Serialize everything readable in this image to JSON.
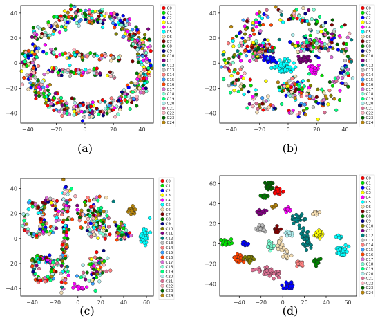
{
  "figure": {
    "legend_entries": [
      "C0",
      "C1",
      "C2",
      "C3",
      "C4",
      "C5",
      "C6",
      "C7",
      "C8",
      "C9",
      "C10",
      "C11",
      "C12",
      "C13",
      "C14",
      "C15",
      "C16",
      "C17",
      "C18",
      "C19",
      "C20",
      "C21",
      "C22",
      "C23",
      "C24"
    ],
    "legend_colors": [
      "#ff0000",
      "#00e000",
      "#0000ff",
      "#ffff00",
      "#ff00ff",
      "#00ffff",
      "#f5deb3",
      "#800000",
      "#008000",
      "#000080",
      "#808000",
      "#800080",
      "#008080",
      "#c0c0c0",
      "#ff8080",
      "#3aa0ff",
      "#ff4500",
      "#da70d6",
      "#7fffd4",
      "#00ff7f",
      "#afeeee",
      "#db7093",
      "#ffb6c1",
      "#006400",
      "#b8860b"
    ]
  },
  "chart_data": [
    {
      "type": "scatter",
      "panel_label": "(a)",
      "xlim": [
        -45,
        48
      ],
      "ylim": [
        -48,
        46
      ],
      "xticks": [
        -40,
        -20,
        0,
        20,
        40
      ],
      "yticks": [
        -40,
        -20,
        0,
        20,
        40
      ],
      "xtick_labels": [
        "−40",
        "−20",
        "0",
        "20",
        "40"
      ],
      "ytick_labels": [
        "−40",
        "−20",
        "0",
        "20",
        "40"
      ],
      "legend": "right",
      "structure": "elliptical ring with two horizontal strands",
      "clusters": [
        {
          "shape": "ring",
          "cx": 2,
          "cy": 0,
          "rx": 42,
          "ry": 40,
          "n": 420,
          "spread": 3,
          "mixed": true
        },
        {
          "shape": "ring",
          "cx": 2,
          "cy": 0,
          "rx": 37,
          "ry": 34,
          "n": 160,
          "spread": 2,
          "mixed": true
        },
        {
          "shape": "line",
          "x1": -25,
          "y1": 8,
          "x2": 25,
          "y2": 4,
          "n": 60,
          "spread": 1.5,
          "mixed": true
        },
        {
          "shape": "line",
          "x1": -28,
          "y1": -6,
          "x2": 24,
          "y2": -9,
          "n": 60,
          "spread": 1.5,
          "mixed": true
        }
      ]
    },
    {
      "type": "scatter",
      "panel_label": "(b)",
      "xlim": [
        -48,
        48
      ],
      "ylim": [
        -48,
        46
      ],
      "xticks": [
        -40,
        -20,
        0,
        20,
        40
      ],
      "yticks": [
        -40,
        -20,
        0,
        20,
        40
      ],
      "xtick_labels": [
        "−40",
        "−20",
        "0",
        "20",
        "40"
      ],
      "ytick_labels": [
        "−40",
        "−20",
        "0",
        "20",
        "40"
      ],
      "legend": "right",
      "structure": "broken ring of small clusters",
      "clusters": [
        {
          "shape": "ring",
          "cx": 0,
          "cy": 0,
          "rx": 40,
          "ry": 38,
          "n": 300,
          "spread": 5,
          "mixed": true
        },
        {
          "shape": "blob",
          "cx": -2,
          "cy": -3,
          "rx": 8,
          "ry": 5,
          "n": 70,
          "color": 5
        },
        {
          "shape": "blob",
          "cx": -12,
          "cy": 3,
          "rx": 4,
          "ry": 3,
          "n": 25,
          "color": 2
        },
        {
          "shape": "blob",
          "cx": 12,
          "cy": 3,
          "rx": 5,
          "ry": 3,
          "n": 25,
          "color": 11
        },
        {
          "shape": "blob",
          "cx": 18,
          "cy": -5,
          "rx": 4,
          "ry": 4,
          "n": 20,
          "color": 4
        },
        {
          "shape": "blob",
          "cx": -20,
          "cy": 10,
          "rx": 10,
          "ry": 8,
          "n": 80,
          "mixed": true
        },
        {
          "shape": "blob",
          "cx": 15,
          "cy": 15,
          "rx": 12,
          "ry": 8,
          "n": 80,
          "mixed": true
        },
        {
          "shape": "blob",
          "cx": 5,
          "cy": -20,
          "rx": 14,
          "ry": 8,
          "n": 80,
          "mixed": true
        }
      ]
    },
    {
      "type": "scatter",
      "panel_label": "(c)",
      "xlim": [
        -50,
        66
      ],
      "ylim": [
        -46,
        48
      ],
      "xticks": [
        -40,
        -20,
        0,
        20,
        40,
        60
      ],
      "yticks": [
        -40,
        -20,
        0,
        20,
        40
      ],
      "xtick_labels": [
        "−40",
        "−20",
        "0",
        "20",
        "40",
        "60"
      ],
      "ytick_labels": [
        "−40",
        "−20",
        "0",
        "20",
        "40"
      ],
      "legend": "right",
      "structure": "loops, strands and a separated cyan cluster",
      "clusters": [
        {
          "shape": "ring",
          "cx": -38,
          "cy": 15,
          "rx": 8,
          "ry": 13,
          "n": 60,
          "spread": 1.5,
          "mixed": true
        },
        {
          "shape": "ring",
          "cx": -25,
          "cy": 18,
          "rx": 7,
          "ry": 13,
          "n": 60,
          "spread": 1.5,
          "mixed": true
        },
        {
          "shape": "ring",
          "cx": -30,
          "cy": -25,
          "rx": 9,
          "ry": 8,
          "n": 55,
          "spread": 1.5,
          "mixed": true
        },
        {
          "shape": "line",
          "x1": -10,
          "y1": 45,
          "x2": -12,
          "y2": -40,
          "n": 90,
          "spread": 2,
          "mixed": true
        },
        {
          "shape": "line",
          "x1": -40,
          "y1": -15,
          "x2": -15,
          "y2": -20,
          "n": 40,
          "spread": 1.5,
          "mixed": true
        },
        {
          "shape": "blob",
          "cx": 15,
          "cy": 15,
          "rx": 14,
          "ry": 18,
          "n": 120,
          "mixed": true
        },
        {
          "shape": "blob",
          "cx": 15,
          "cy": -25,
          "rx": 12,
          "ry": 10,
          "n": 60,
          "mixed": true
        },
        {
          "shape": "blob",
          "cx": 38,
          "cy": 5,
          "rx": 6,
          "ry": 8,
          "n": 40,
          "mixed": true
        },
        {
          "shape": "blob",
          "cx": 47,
          "cy": 23,
          "rx": 4,
          "ry": 3,
          "n": 25,
          "color": 24
        },
        {
          "shape": "blob",
          "cx": 58,
          "cy": 2,
          "rx": 4,
          "ry": 7,
          "n": 45,
          "color": 5
        },
        {
          "shape": "line",
          "x1": -5,
          "y1": -38,
          "x2": 8,
          "y2": -40,
          "n": 15,
          "spread": 1,
          "color": 4
        }
      ]
    },
    {
      "type": "scatter",
      "panel_label": "(d)",
      "xlim": [
        -58,
        68
      ],
      "ylim": [
        -52,
        68
      ],
      "xticks": [
        -40,
        -20,
        0,
        20,
        40,
        60
      ],
      "yticks": [
        -40,
        -20,
        0,
        20,
        40,
        60
      ],
      "xtick_labels": [
        "−40",
        "−20",
        "0",
        "20",
        "40",
        "60"
      ],
      "ytick_labels": [
        "−40",
        "−20",
        "0",
        "20",
        "40",
        "60"
      ],
      "legend": "right",
      "structure": "well separated single-colour clusters",
      "clusters": [
        {
          "shape": "blob",
          "cx": -13,
          "cy": 58,
          "rx": 4,
          "ry": 4,
          "n": 30,
          "color": 23
        },
        {
          "shape": "blob",
          "cx": -5,
          "cy": 52,
          "rx": 4,
          "ry": 4,
          "n": 30,
          "color": 0
        },
        {
          "shape": "blob",
          "cx": -17,
          "cy": 47,
          "rx": 3,
          "ry": 2,
          "n": 15,
          "color": 8
        },
        {
          "shape": "blob",
          "cx": -20,
          "cy": 32,
          "rx": 4,
          "ry": 3,
          "n": 20,
          "color": 11
        },
        {
          "shape": "blob",
          "cx": -8,
          "cy": 38,
          "rx": 3,
          "ry": 2,
          "n": 10,
          "color": 24
        },
        {
          "shape": "blob",
          "cx": 5,
          "cy": 34,
          "rx": 3,
          "ry": 3,
          "n": 15,
          "color": 4
        },
        {
          "shape": "blob",
          "cx": 15,
          "cy": 25,
          "rx": 6,
          "ry": 4,
          "n": 30,
          "color": 12
        },
        {
          "shape": "blob",
          "cx": 30,
          "cy": 31,
          "rx": 3,
          "ry": 2,
          "n": 12,
          "color": 6
        },
        {
          "shape": "blob",
          "cx": -20,
          "cy": 15,
          "rx": 5,
          "ry": 3,
          "n": 20,
          "color": 13
        },
        {
          "shape": "blob",
          "cx": -5,
          "cy": 14,
          "rx": 3,
          "ry": 3,
          "n": 15,
          "color": 7
        },
        {
          "shape": "blob",
          "cx": 5,
          "cy": 10,
          "rx": 3,
          "ry": 3,
          "n": 15,
          "color": 20
        },
        {
          "shape": "blob",
          "cx": 33,
          "cy": 10,
          "rx": 4,
          "ry": 4,
          "n": 30,
          "color": 3
        },
        {
          "shape": "line",
          "x1": 18,
          "y1": 15,
          "x2": 25,
          "y2": -5,
          "n": 30,
          "spread": 2,
          "color": 12
        },
        {
          "shape": "blob",
          "cx": -52,
          "cy": 2,
          "rx": 5,
          "ry": 3,
          "n": 25,
          "color": 1
        },
        {
          "shape": "blob",
          "cx": -35,
          "cy": 0,
          "rx": 3,
          "ry": 3,
          "n": 15,
          "color": 2
        },
        {
          "shape": "blob",
          "cx": -12,
          "cy": -2,
          "rx": 5,
          "ry": 4,
          "n": 25,
          "color": 18
        },
        {
          "shape": "line",
          "x1": -5,
          "y1": 5,
          "x2": 5,
          "y2": -15,
          "n": 30,
          "spread": 2,
          "color": 6
        },
        {
          "shape": "blob",
          "cx": -40,
          "cy": -15,
          "rx": 4,
          "ry": 4,
          "n": 25,
          "color": 16
        },
        {
          "shape": "blob",
          "cx": -30,
          "cy": -15,
          "rx": 5,
          "ry": 3,
          "n": 25,
          "color": 10
        },
        {
          "shape": "line",
          "x1": -25,
          "y1": -25,
          "x2": -5,
          "y2": -30,
          "n": 40,
          "spread": 2,
          "color": 21
        },
        {
          "shape": "blob",
          "cx": 15,
          "cy": -20,
          "rx": 3,
          "ry": 3,
          "n": 15,
          "color": 14
        },
        {
          "shape": "blob",
          "cx": 32,
          "cy": -18,
          "rx": 3,
          "ry": 4,
          "n": 15,
          "color": 8
        },
        {
          "shape": "blob",
          "cx": 5,
          "cy": -42,
          "rx": 5,
          "ry": 4,
          "n": 35,
          "color": 2
        },
        {
          "shape": "blob",
          "cx": 55,
          "cy": -8,
          "rx": 5,
          "ry": 5,
          "n": 40,
          "color": 5
        },
        {
          "shape": "blob",
          "cx": 52,
          "cy": 7,
          "rx": 3,
          "ry": 2,
          "n": 12,
          "color": 5
        }
      ]
    }
  ]
}
